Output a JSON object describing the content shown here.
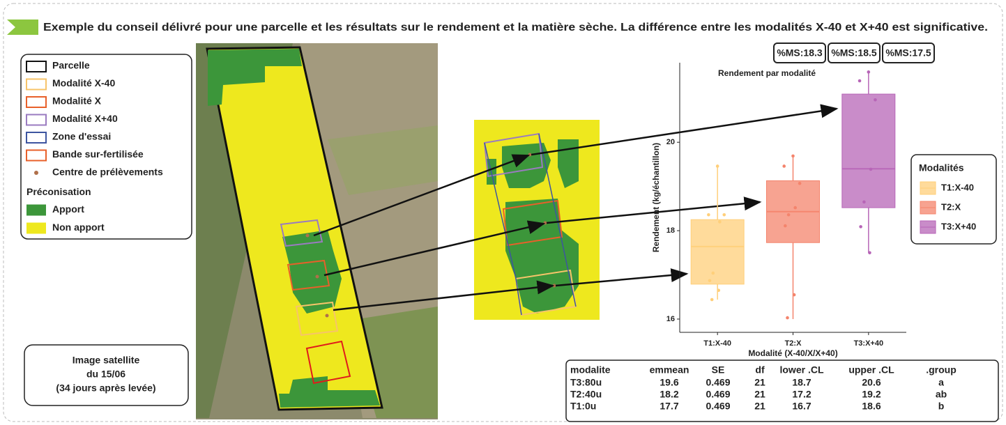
{
  "title": "Exemple du conseil délivré pour une parcelle et les résultats sur le rendement et la matière sèche. La différence entre les modalités X-40 et X+40 est significative.",
  "map_legend": {
    "items": [
      {
        "label": "Parcelle",
        "color": "#111111",
        "kind": "box"
      },
      {
        "label": "Modalité X-40",
        "color": "#f7c46a",
        "kind": "box"
      },
      {
        "label": "Modalité X",
        "color": "#e8602a",
        "kind": "box"
      },
      {
        "label": "Modalité X+40",
        "color": "#9a7bc0",
        "kind": "box"
      },
      {
        "label": "Zone d'essai",
        "color": "#3d55a0",
        "kind": "box"
      },
      {
        "label": "Bande sur-fertilisée",
        "color": "#e8602a",
        "kind": "box"
      },
      {
        "label": "Centre de prélèvements",
        "color": "#b0704a",
        "kind": "dot"
      }
    ],
    "section": "Préconisation",
    "fills": [
      {
        "label": "Apport",
        "color": "#3c963a"
      },
      {
        "label": "Non apport",
        "color": "#eee81e"
      }
    ]
  },
  "image_note": [
    "Image satellite",
    "du 15/06",
    "(34 jours après levée)"
  ],
  "dry_matter": [
    "%MS:18.3",
    "%MS:18.5",
    "%MS:17.5"
  ],
  "chart_data": {
    "type": "box",
    "title": "Rendement par modalité",
    "x_label": "Modalité (X-40/X/X+40)",
    "y_label": "Rendement (kg/échantillon)",
    "categories": [
      "T1:X-40",
      "T2:X",
      "T3:X+40"
    ],
    "legend_title": "Modalités",
    "series": [
      {
        "name": "T1:X-40",
        "color": "#ffcf7a",
        "low": 16.44,
        "q1": 16.79,
        "median": 17.64,
        "q3": 18.25,
        "high": 19.46,
        "points": [
          19.46,
          18.36,
          18.36,
          18.2,
          17.04,
          16.87,
          16.65,
          16.44
        ]
      },
      {
        "name": "T2:X",
        "color": "#f4846c",
        "low": 16.0,
        "q1": 17.73,
        "median": 18.43,
        "q3": 19.13,
        "high": 19.7,
        "points": [
          19.69,
          19.46,
          19.07,
          18.52,
          18.36,
          18.11,
          16.55,
          16.03
        ]
      },
      {
        "name": "T3:X+40",
        "color": "#b765b7",
        "low": 17.5,
        "q1": 18.52,
        "median": 19.4,
        "q3": 21.09,
        "high": 21.59,
        "points": [
          21.59,
          21.39,
          20.96,
          19.39,
          18.65,
          18.09,
          17.5
        ]
      }
    ],
    "ylim": [
      15.7,
      21.8
    ],
    "yticks": [
      16,
      18,
      20
    ]
  },
  "table": {
    "header": [
      "modalite",
      "emmean",
      "SE",
      "df",
      "lower .CL",
      "upper .CL",
      ".group"
    ],
    "rows": [
      [
        "T3:80u",
        19.6,
        0.469,
        21,
        18.7,
        20.6,
        "a"
      ],
      [
        "T2:40u",
        18.2,
        0.469,
        21,
        17.2,
        19.2,
        "ab"
      ],
      [
        "T1:0u",
        17.7,
        0.469,
        21,
        16.7,
        18.6,
        "b"
      ]
    ]
  }
}
